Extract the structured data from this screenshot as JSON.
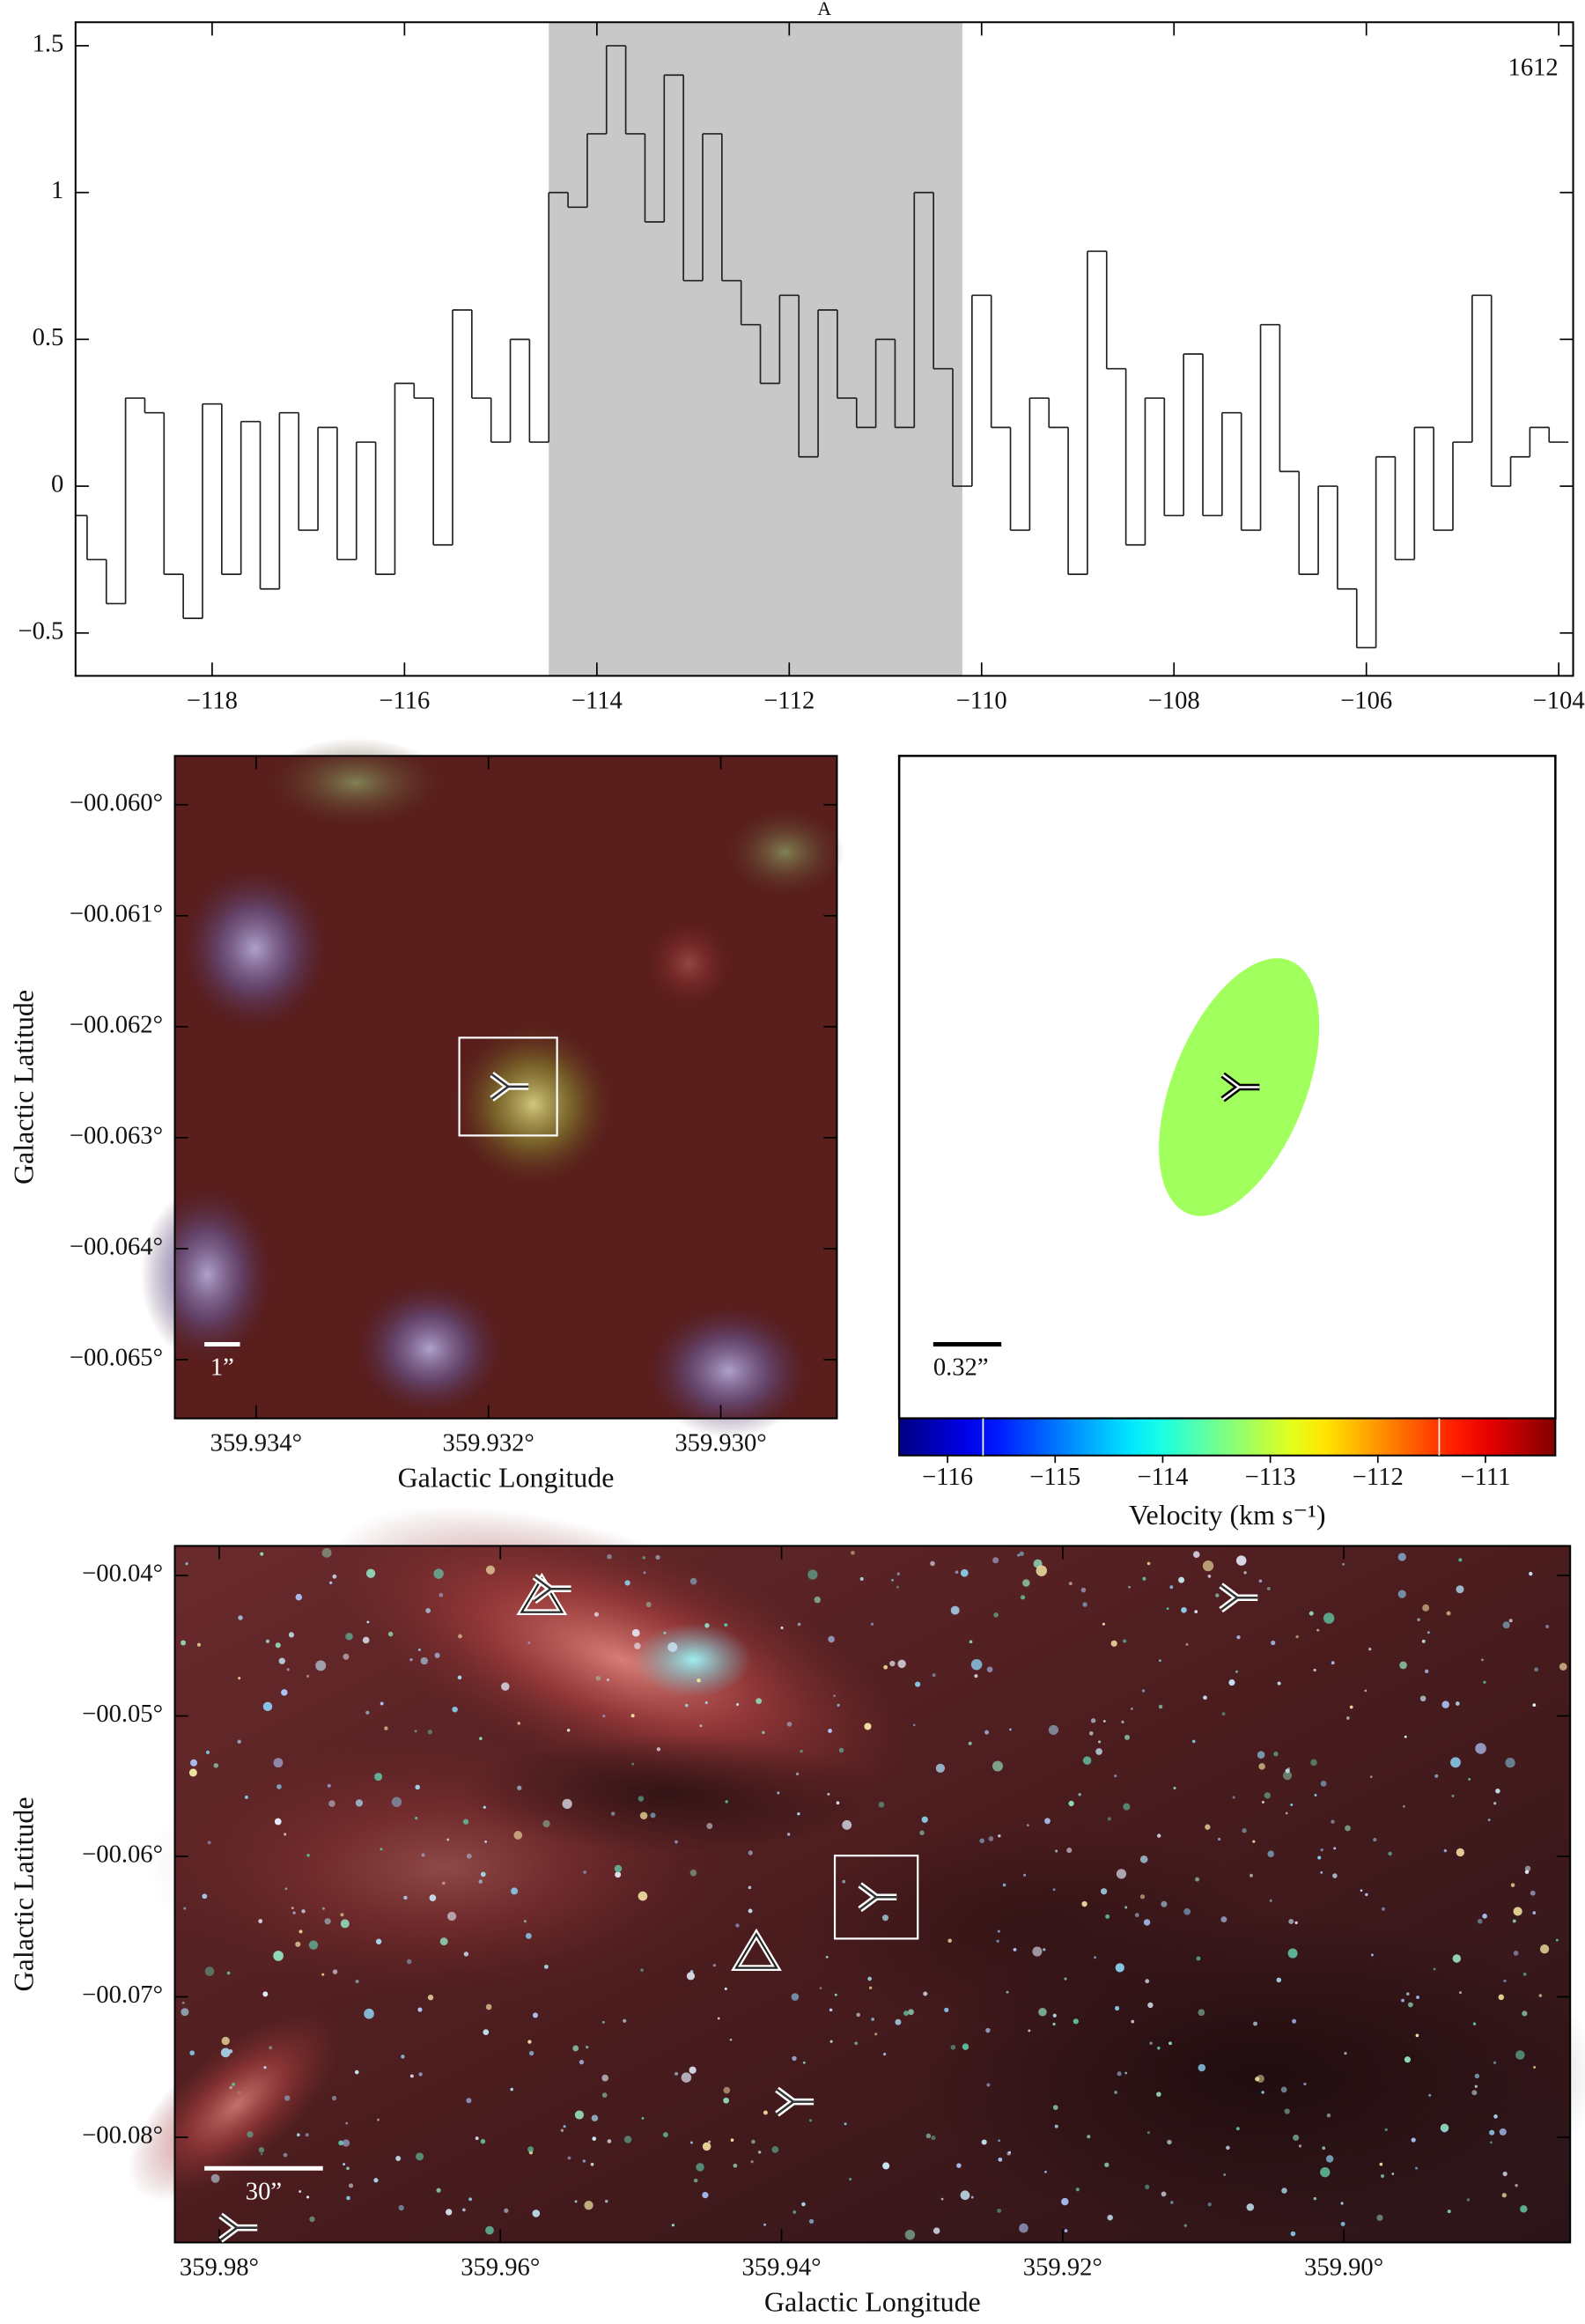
{
  "chart_data": [
    {
      "type": "step",
      "title": "A",
      "annotation": "1612",
      "color": "#222222",
      "shade_color": "#c8c8c8",
      "shade": [
        -114.5,
        -110.2
      ],
      "x": [
        -119.4,
        -119.2,
        -119.0,
        -118.8,
        -118.6,
        -118.4,
        -118.2,
        -118.0,
        -117.8,
        -117.6,
        -117.4,
        -117.2,
        -117.0,
        -116.8,
        -116.6,
        -116.4,
        -116.2,
        -116.0,
        -115.8,
        -115.6,
        -115.4,
        -115.2,
        -115.0,
        -114.8,
        -114.6,
        -114.4,
        -114.2,
        -114.0,
        -113.8,
        -113.6,
        -113.4,
        -113.2,
        -113.0,
        -112.8,
        -112.6,
        -112.4,
        -112.2,
        -112.0,
        -111.8,
        -111.6,
        -111.4,
        -111.2,
        -111.0,
        -110.8,
        -110.6,
        -110.4,
        -110.2,
        -110.0,
        -109.8,
        -109.6,
        -109.4,
        -109.2,
        -109.0,
        -108.8,
        -108.6,
        -108.4,
        -108.2,
        -108.0,
        -107.8,
        -107.6,
        -107.4,
        -107.2,
        -107.0,
        -106.8,
        -106.6,
        -106.4,
        -106.2,
        -106.0,
        -105.8,
        -105.6,
        -105.4,
        -105.2,
        -105.0,
        -104.8,
        -104.6,
        -104.4,
        -104.2,
        -104.0
      ],
      "values": [
        -0.1,
        -0.25,
        -0.4,
        0.3,
        0.25,
        -0.3,
        -0.45,
        0.28,
        -0.3,
        0.22,
        -0.35,
        0.25,
        -0.15,
        0.2,
        -0.25,
        0.15,
        -0.3,
        0.35,
        0.3,
        -0.2,
        0.6,
        0.3,
        0.15,
        0.5,
        0.15,
        1.0,
        0.95,
        1.2,
        1.5,
        1.2,
        0.9,
        1.4,
        0.7,
        1.2,
        0.7,
        0.55,
        0.35,
        0.65,
        0.1,
        0.6,
        0.3,
        0.2,
        0.5,
        0.2,
        1.0,
        0.4,
        0.0,
        0.65,
        0.2,
        -0.15,
        0.3,
        0.2,
        -0.3,
        0.8,
        0.4,
        -0.2,
        0.3,
        -0.1,
        0.45,
        -0.1,
        0.25,
        -0.15,
        0.55,
        0.05,
        -0.3,
        0.0,
        -0.35,
        -0.55,
        0.1,
        -0.25,
        0.2,
        -0.15,
        0.15,
        0.65,
        0.0,
        0.1,
        0.2,
        0.15
      ],
      "xlim": [
        -119.42,
        -103.85
      ],
      "ylim": [
        -0.646,
        1.58
      ],
      "xticks": [
        {
          "value": -118,
          "label": "−118"
        },
        {
          "value": -116,
          "label": "−116"
        },
        {
          "value": -114,
          "label": "−114"
        },
        {
          "value": -112,
          "label": "−112"
        },
        {
          "value": -110,
          "label": "−110"
        },
        {
          "value": -108,
          "label": "−108"
        },
        {
          "value": -106,
          "label": "−106"
        },
        {
          "value": -104,
          "label": "−104"
        }
      ],
      "yticks": [
        {
          "value": -0.5,
          "label": "−0.5"
        },
        0,
        0.5,
        1,
        1.5
      ]
    },
    {
      "type": "image",
      "xlabel": "Galactic Longitude",
      "ylabel": "Galactic Latitude",
      "scale_bar": "1”",
      "xlim": [
        359.9347,
        359.929
      ],
      "ylim": [
        -0.06553,
        -0.05956
      ],
      "xticks": [
        {
          "value": 359.934,
          "label": "359.934°"
        },
        {
          "value": 359.932,
          "label": "359.932°"
        },
        {
          "value": 359.93,
          "label": "359.930°"
        }
      ],
      "yticks": [
        {
          "value": -0.06,
          "label": "−00.060°"
        },
        {
          "value": -0.061,
          "label": "−00.061°"
        },
        {
          "value": -0.062,
          "label": "−00.062°"
        },
        {
          "value": -0.063,
          "label": "−00.063°"
        },
        {
          "value": -0.064,
          "label": "−00.064°"
        },
        {
          "value": -0.065,
          "label": "−00.065°"
        }
      ],
      "masers": [
        {
          "x": 359.93183,
          "y": -0.06254
        }
      ],
      "triangles": []
    },
    {
      "type": "colormap",
      "xlabel": "Velocity (km s⁻¹)",
      "scale_bar": "0.32”",
      "velocity": -113.2,
      "clim": [
        -116.45,
        -110.35
      ],
      "colorbar_markers": [
        -115.67,
        -111.43
      ],
      "cticks": [
        {
          "value": -116,
          "label": "−116"
        },
        {
          "value": -115,
          "label": "−115"
        },
        {
          "value": -114,
          "label": "−114"
        },
        {
          "value": -113,
          "label": "−113"
        },
        {
          "value": -112,
          "label": "−112"
        },
        {
          "value": -111,
          "label": "−111"
        }
      ]
    },
    {
      "type": "image",
      "xlabel": "Galactic Longitude",
      "ylabel": "Galactic Latitude",
      "scale_bar": "30”",
      "xlim": [
        359.98316,
        359.8839
      ],
      "ylim": [
        -0.08749,
        -0.03789
      ],
      "xticks": [
        {
          "value": 359.98,
          "label": "359.98°"
        },
        {
          "value": 359.96,
          "label": "359.96°"
        },
        {
          "value": 359.94,
          "label": "359.94°"
        },
        {
          "value": 359.92,
          "label": "359.92°"
        },
        {
          "value": 359.9,
          "label": "359.90°"
        }
      ],
      "yticks": [
        {
          "value": -0.04,
          "label": "−00.04°"
        },
        {
          "value": -0.05,
          "label": "−00.05°"
        },
        {
          "value": -0.06,
          "label": "−00.06°"
        },
        {
          "value": -0.07,
          "label": "−00.07°"
        },
        {
          "value": -0.08,
          "label": "−00.08°"
        }
      ],
      "masers": [
        {
          "x": 359.93326,
          "y": -0.0629
        },
        {
          "x": 359.95642,
          "y": -0.04095
        },
        {
          "x": 359.90758,
          "y": -0.04158
        },
        {
          "x": 359.93916,
          "y": -0.07747
        },
        {
          "x": 359.97874,
          "y": -0.08644
        }
      ],
      "triangles": [
        {
          "x": 359.95705,
          "y": -0.04158
        },
        {
          "x": 359.94179,
          "y": -0.06691
        }
      ]
    }
  ]
}
